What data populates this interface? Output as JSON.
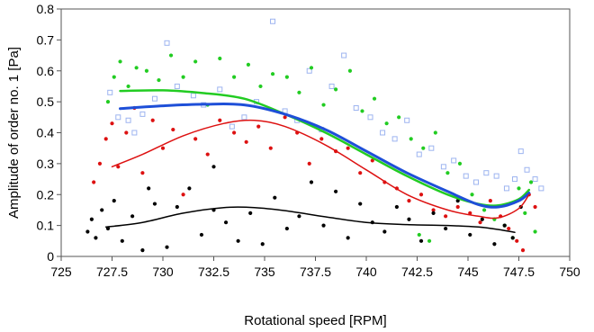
{
  "chart_data": {
    "type": "scatter",
    "title": "",
    "xlabel": "Rotational speed [RPM]",
    "ylabel": "Amplitude of order no. 1 [Pa]",
    "xlim": [
      725,
      750
    ],
    "ylim": [
      0,
      0.8
    ],
    "xticks": [
      725,
      727.5,
      730,
      732.5,
      735,
      737.5,
      740,
      742.5,
      745,
      747.5,
      750
    ],
    "xtick_labels": [
      "725",
      "727.5",
      "730",
      "732.5",
      "735",
      "737.5",
      "740",
      "742.5",
      "745",
      "747.5",
      "750"
    ],
    "yticks": [
      0,
      0.1,
      0.2,
      0.3,
      0.4,
      0.5,
      0.6,
      0.7,
      0.8
    ],
    "ytick_labels": [
      "0",
      "0.1",
      "0.2",
      "0.3",
      "0.4",
      "0.5",
      "0.6",
      "0.7",
      "0.8"
    ],
    "grid": false,
    "legend": "none",
    "series": [
      {
        "color": "#9db4f0",
        "marker": "open-square",
        "points": [
          [
            727.4,
            0.53
          ],
          [
            727.8,
            0.45
          ],
          [
            728.3,
            0.44
          ],
          [
            728.6,
            0.4
          ],
          [
            729.0,
            0.46
          ],
          [
            729.6,
            0.51
          ],
          [
            730.2,
            0.69
          ],
          [
            730.7,
            0.55
          ],
          [
            731.5,
            0.52
          ],
          [
            732.0,
            0.49
          ],
          [
            732.8,
            0.54
          ],
          [
            733.4,
            0.42
          ],
          [
            734.0,
            0.45
          ],
          [
            734.6,
            0.5
          ],
          [
            735.4,
            0.76
          ],
          [
            736.0,
            0.47
          ],
          [
            736.6,
            0.44
          ],
          [
            737.2,
            0.6
          ],
          [
            737.8,
            0.41
          ],
          [
            738.3,
            0.55
          ],
          [
            738.9,
            0.65
          ],
          [
            739.5,
            0.48
          ],
          [
            740.2,
            0.45
          ],
          [
            740.8,
            0.4
          ],
          [
            741.4,
            0.38
          ],
          [
            742.0,
            0.44
          ],
          [
            742.6,
            0.33
          ],
          [
            743.2,
            0.35
          ],
          [
            743.8,
            0.29
          ],
          [
            744.3,
            0.31
          ],
          [
            744.9,
            0.26
          ],
          [
            745.4,
            0.24
          ],
          [
            745.9,
            0.27
          ],
          [
            746.4,
            0.26
          ],
          [
            746.9,
            0.22
          ],
          [
            747.3,
            0.25
          ],
          [
            747.6,
            0.34
          ],
          [
            747.9,
            0.28
          ],
          [
            748.3,
            0.25
          ],
          [
            748.6,
            0.22
          ]
        ]
      },
      {
        "color": "#22cc22",
        "marker": "dot",
        "points": [
          [
            727.3,
            0.5
          ],
          [
            727.6,
            0.58
          ],
          [
            727.9,
            0.63
          ],
          [
            728.3,
            0.55
          ],
          [
            728.7,
            0.61
          ],
          [
            729.2,
            0.6
          ],
          [
            729.8,
            0.57
          ],
          [
            730.4,
            0.65
          ],
          [
            731.0,
            0.58
          ],
          [
            731.6,
            0.63
          ],
          [
            732.2,
            0.49
          ],
          [
            732.8,
            0.64
          ],
          [
            733.5,
            0.58
          ],
          [
            734.2,
            0.62
          ],
          [
            734.8,
            0.55
          ],
          [
            735.4,
            0.59
          ],
          [
            736.1,
            0.58
          ],
          [
            736.7,
            0.53
          ],
          [
            737.3,
            0.61
          ],
          [
            737.9,
            0.49
          ],
          [
            738.5,
            0.54
          ],
          [
            739.2,
            0.6
          ],
          [
            739.8,
            0.47
          ],
          [
            740.4,
            0.51
          ],
          [
            741.0,
            0.43
          ],
          [
            741.6,
            0.45
          ],
          [
            742.2,
            0.38
          ],
          [
            742.8,
            0.35
          ],
          [
            743.4,
            0.4
          ],
          [
            744.0,
            0.27
          ],
          [
            744.6,
            0.3
          ],
          [
            745.2,
            0.2
          ],
          [
            745.8,
            0.15
          ],
          [
            746.3,
            0.12
          ],
          [
            746.8,
            0.1
          ],
          [
            747.2,
            0.06
          ],
          [
            747.5,
            0.22
          ],
          [
            747.8,
            0.14
          ],
          [
            748.1,
            0.24
          ],
          [
            748.3,
            0.08
          ],
          [
            742.6,
            0.07
          ],
          [
            743.1,
            0.05
          ]
        ]
      },
      {
        "color": "#dd1111",
        "marker": "dot",
        "points": [
          [
            726.6,
            0.24
          ],
          [
            726.9,
            0.3
          ],
          [
            727.2,
            0.38
          ],
          [
            727.5,
            0.43
          ],
          [
            727.8,
            0.29
          ],
          [
            728.2,
            0.4
          ],
          [
            728.6,
            0.48
          ],
          [
            729.0,
            0.27
          ],
          [
            729.5,
            0.44
          ],
          [
            730.0,
            0.35
          ],
          [
            730.5,
            0.41
          ],
          [
            731.0,
            0.2
          ],
          [
            731.6,
            0.38
          ],
          [
            732.2,
            0.33
          ],
          [
            732.8,
            0.44
          ],
          [
            733.5,
            0.4
          ],
          [
            734.1,
            0.37
          ],
          [
            734.7,
            0.42
          ],
          [
            735.3,
            0.35
          ],
          [
            736.0,
            0.45
          ],
          [
            736.6,
            0.4
          ],
          [
            737.2,
            0.3
          ],
          [
            737.8,
            0.38
          ],
          [
            738.5,
            0.34
          ],
          [
            739.1,
            0.35
          ],
          [
            739.7,
            0.27
          ],
          [
            740.3,
            0.31
          ],
          [
            740.9,
            0.24
          ],
          [
            741.5,
            0.22
          ],
          [
            742.1,
            0.18
          ],
          [
            742.7,
            0.2
          ],
          [
            743.3,
            0.15
          ],
          [
            743.9,
            0.13
          ],
          [
            744.5,
            0.16
          ],
          [
            745.1,
            0.14
          ],
          [
            745.6,
            0.11
          ],
          [
            746.1,
            0.18
          ],
          [
            746.6,
            0.13
          ],
          [
            747.0,
            0.09
          ],
          [
            747.4,
            0.05
          ],
          [
            747.7,
            0.02
          ],
          [
            748.0,
            0.2
          ],
          [
            748.3,
            0.16
          ]
        ]
      },
      {
        "color": "#000000",
        "marker": "dot",
        "points": [
          [
            726.3,
            0.08
          ],
          [
            726.5,
            0.12
          ],
          [
            726.7,
            0.06
          ],
          [
            727.0,
            0.15
          ],
          [
            727.3,
            0.09
          ],
          [
            727.6,
            0.18
          ],
          [
            728.0,
            0.05
          ],
          [
            728.5,
            0.13
          ],
          [
            729.0,
            0.02
          ],
          [
            729.6,
            0.17
          ],
          [
            730.2,
            0.03
          ],
          [
            730.7,
            0.16
          ],
          [
            731.3,
            0.22
          ],
          [
            731.9,
            0.07
          ],
          [
            732.5,
            0.15
          ],
          [
            733.1,
            0.11
          ],
          [
            733.7,
            0.05
          ],
          [
            734.3,
            0.14
          ],
          [
            734.9,
            0.04
          ],
          [
            735.5,
            0.19
          ],
          [
            736.1,
            0.09
          ],
          [
            736.7,
            0.13
          ],
          [
            737.3,
            0.24
          ],
          [
            737.9,
            0.1
          ],
          [
            738.5,
            0.21
          ],
          [
            739.1,
            0.06
          ],
          [
            739.7,
            0.17
          ],
          [
            740.3,
            0.11
          ],
          [
            740.9,
            0.08
          ],
          [
            741.5,
            0.16
          ],
          [
            742.1,
            0.12
          ],
          [
            742.7,
            0.05
          ],
          [
            743.3,
            0.14
          ],
          [
            743.9,
            0.09
          ],
          [
            744.5,
            0.18
          ],
          [
            745.1,
            0.07
          ],
          [
            745.7,
            0.12
          ],
          [
            746.3,
            0.04
          ],
          [
            746.8,
            0.1
          ],
          [
            747.2,
            0.06
          ],
          [
            747.6,
            0.16
          ],
          [
            732.5,
            0.29
          ],
          [
            729.3,
            0.22
          ]
        ]
      }
    ],
    "trend_lines": [
      {
        "color": "#22cc22",
        "width": 2.5,
        "points": [
          [
            727.9,
            0.535
          ],
          [
            730,
            0.537
          ],
          [
            732,
            0.528
          ],
          [
            734,
            0.51
          ],
          [
            736,
            0.46
          ],
          [
            738,
            0.4
          ],
          [
            740,
            0.33
          ],
          [
            742,
            0.26
          ],
          [
            744,
            0.2
          ],
          [
            745.5,
            0.17
          ],
          [
            746.5,
            0.165
          ],
          [
            747.5,
            0.185
          ],
          [
            748,
            0.215
          ]
        ]
      },
      {
        "color": "#1e4fd8",
        "width": 3,
        "points": [
          [
            727.9,
            0.478
          ],
          [
            730,
            0.487
          ],
          [
            732,
            0.492
          ],
          [
            734,
            0.49
          ],
          [
            736,
            0.46
          ],
          [
            738,
            0.41
          ],
          [
            740,
            0.34
          ],
          [
            742,
            0.27
          ],
          [
            744,
            0.21
          ],
          [
            745.5,
            0.168
          ],
          [
            746.5,
            0.16
          ],
          [
            747.5,
            0.18
          ],
          [
            748,
            0.205
          ]
        ]
      },
      {
        "color": "#dd1111",
        "width": 1.5,
        "points": [
          [
            727.5,
            0.29
          ],
          [
            729,
            0.33
          ],
          [
            731,
            0.39
          ],
          [
            733,
            0.43
          ],
          [
            734.5,
            0.44
          ],
          [
            736,
            0.42
          ],
          [
            738,
            0.36
          ],
          [
            740,
            0.28
          ],
          [
            742,
            0.2
          ],
          [
            744,
            0.15
          ],
          [
            745.5,
            0.13
          ],
          [
            746.5,
            0.125
          ],
          [
            747.5,
            0.155
          ],
          [
            748,
            0.2
          ]
        ]
      },
      {
        "color": "#000000",
        "width": 1.5,
        "points": [
          [
            727.2,
            0.095
          ],
          [
            729,
            0.11
          ],
          [
            731,
            0.14
          ],
          [
            733,
            0.158
          ],
          [
            734.5,
            0.158
          ],
          [
            736,
            0.148
          ],
          [
            738,
            0.128
          ],
          [
            740,
            0.11
          ],
          [
            742,
            0.103
          ],
          [
            744,
            0.1
          ],
          [
            745.5,
            0.095
          ],
          [
            746.5,
            0.087
          ],
          [
            747.3,
            0.078
          ]
        ]
      }
    ]
  }
}
